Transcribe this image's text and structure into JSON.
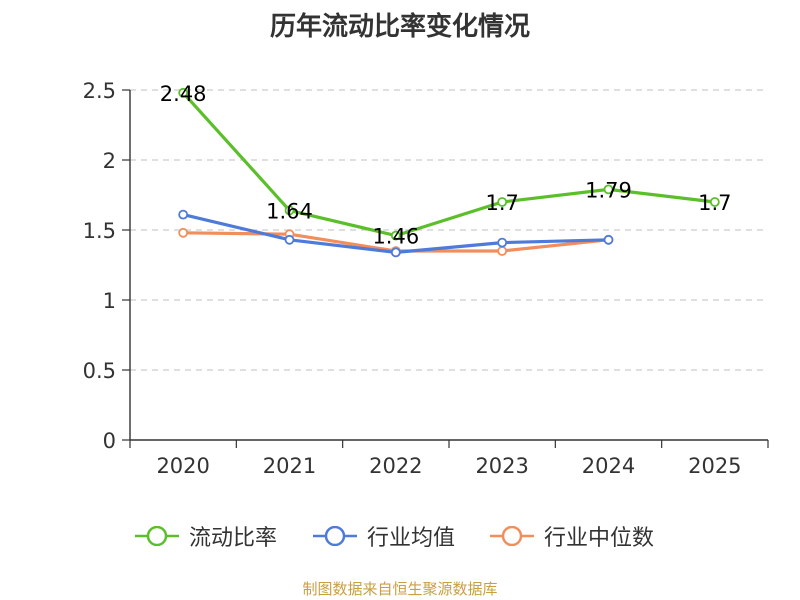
{
  "chart_data": {
    "type": "line",
    "title": "历年流动比率变化情况",
    "categories": [
      "2020",
      "2021",
      "2022",
      "2023",
      "2024",
      "2025"
    ],
    "ylim": [
      0,
      2.5
    ],
    "yticks": [
      "0",
      "0.5",
      "1",
      "1.5",
      "2",
      "2.5"
    ],
    "grid": true,
    "legend_position": "bottom",
    "series": [
      {
        "name": "流动比率",
        "color": "#5bbf2a",
        "values": [
          2.48,
          1.64,
          1.46,
          1.7,
          1.79,
          1.7
        ],
        "labels": [
          "2.48",
          "1.64",
          "1.46",
          "1.7",
          "1.79",
          "1.7"
        ]
      },
      {
        "name": "行业均值",
        "color": "#4e7bd9",
        "values": [
          1.61,
          1.43,
          1.34,
          1.41,
          1.43,
          null
        ]
      },
      {
        "name": "行业中位数",
        "color": "#f28e5c",
        "values": [
          1.48,
          1.47,
          1.35,
          1.35,
          1.43,
          null
        ]
      }
    ]
  },
  "source": "制图数据来自恒生聚源数据库"
}
